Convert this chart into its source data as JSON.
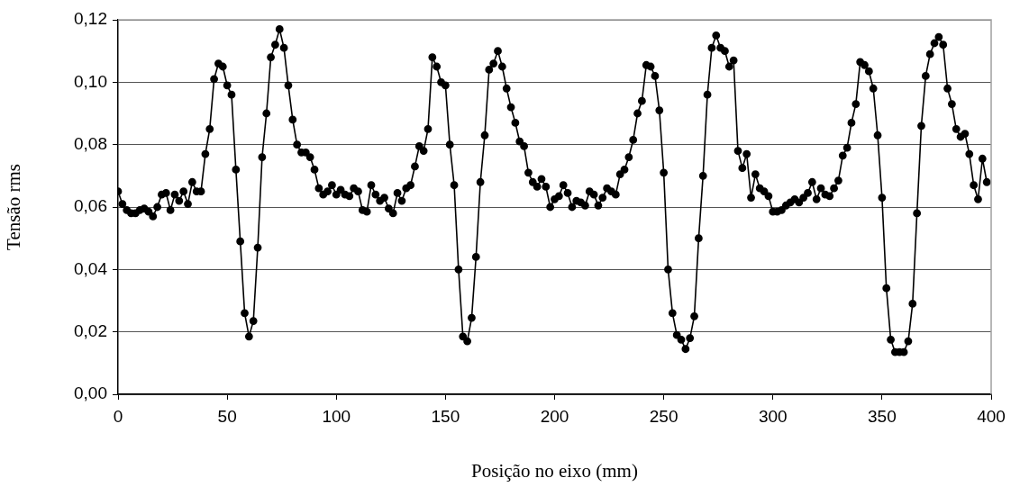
{
  "chart_data": {
    "type": "line",
    "xlabel": "Posição no eixo (mm)",
    "ylabel": "Tensão rms",
    "color": "#000000",
    "marker": "circle",
    "line_style": "solid",
    "grid": "y",
    "legend": false,
    "x": [
      0,
      2,
      4,
      6,
      8,
      10,
      12,
      14,
      16,
      18,
      20,
      22,
      24,
      26,
      28,
      30,
      32,
      34,
      36,
      38,
      40,
      42,
      44,
      46,
      48,
      50,
      52,
      54,
      56,
      58,
      60,
      62,
      64,
      66,
      68,
      70,
      72,
      74,
      76,
      78,
      80,
      82,
      84,
      86,
      88,
      90,
      92,
      94,
      96,
      98,
      100,
      102,
      104,
      106,
      108,
      110,
      112,
      114,
      116,
      118,
      120,
      122,
      124,
      126,
      128,
      130,
      132,
      134,
      136,
      138,
      140,
      142,
      144,
      146,
      148,
      150,
      152,
      154,
      156,
      158,
      160,
      162,
      164,
      166,
      168,
      170,
      172,
      174,
      176,
      178,
      180,
      182,
      184,
      186,
      188,
      190,
      192,
      194,
      196,
      198,
      200,
      202,
      204,
      206,
      208,
      210,
      212,
      214,
      216,
      218,
      220,
      222,
      224,
      226,
      228,
      230,
      232,
      234,
      236,
      238,
      240,
      242,
      244,
      246,
      248,
      250,
      252,
      254,
      256,
      258,
      260,
      262,
      264,
      266,
      268,
      270,
      272,
      274,
      276,
      278,
      280,
      282,
      284,
      286,
      288,
      290,
      292,
      294,
      296,
      298,
      300,
      302,
      304,
      306,
      308,
      310,
      312,
      314,
      316,
      318,
      320,
      322,
      324,
      326,
      328,
      330,
      332,
      334,
      336,
      338,
      340,
      342,
      344,
      346,
      348,
      350,
      352,
      354,
      356,
      358,
      360,
      362,
      364,
      366,
      368,
      370,
      372,
      374,
      376,
      378,
      380,
      382,
      384,
      386,
      388,
      390,
      392,
      394,
      396,
      398
    ],
    "values": [
      0.065,
      0.061,
      0.059,
      0.058,
      0.058,
      0.059,
      0.0595,
      0.0585,
      0.057,
      0.06,
      0.064,
      0.0645,
      0.059,
      0.064,
      0.062,
      0.065,
      0.061,
      0.068,
      0.065,
      0.065,
      0.077,
      0.085,
      0.101,
      0.106,
      0.105,
      0.099,
      0.096,
      0.072,
      0.049,
      0.026,
      0.0185,
      0.0235,
      0.047,
      0.076,
      0.09,
      0.108,
      0.112,
      0.117,
      0.111,
      0.099,
      0.088,
      0.08,
      0.0775,
      0.0775,
      0.076,
      0.072,
      0.066,
      0.064,
      0.065,
      0.067,
      0.064,
      0.0655,
      0.064,
      0.0635,
      0.066,
      0.065,
      0.059,
      0.0585,
      0.067,
      0.064,
      0.062,
      0.063,
      0.0595,
      0.058,
      0.0645,
      0.062,
      0.066,
      0.067,
      0.073,
      0.0795,
      0.078,
      0.085,
      0.108,
      0.105,
      0.1,
      0.099,
      0.08,
      0.067,
      0.04,
      0.0185,
      0.017,
      0.0245,
      0.044,
      0.068,
      0.083,
      0.104,
      0.106,
      0.11,
      0.105,
      0.098,
      0.092,
      0.087,
      0.081,
      0.0795,
      0.071,
      0.068,
      0.0665,
      0.069,
      0.0665,
      0.06,
      0.0625,
      0.0635,
      0.067,
      0.0645,
      0.06,
      0.062,
      0.0615,
      0.0605,
      0.065,
      0.064,
      0.0605,
      0.063,
      0.066,
      0.065,
      0.064,
      0.0705,
      0.072,
      0.076,
      0.0815,
      0.09,
      0.094,
      0.1055,
      0.105,
      0.102,
      0.091,
      0.071,
      0.04,
      0.026,
      0.019,
      0.0175,
      0.0145,
      0.018,
      0.025,
      0.05,
      0.07,
      0.096,
      0.111,
      0.115,
      0.111,
      0.11,
      0.105,
      0.107,
      0.078,
      0.0725,
      0.077,
      0.063,
      0.0705,
      0.066,
      0.065,
      0.0635,
      0.0585,
      0.0585,
      0.059,
      0.0605,
      0.0615,
      0.0625,
      0.0615,
      0.063,
      0.0645,
      0.068,
      0.0625,
      0.066,
      0.064,
      0.0635,
      0.066,
      0.0685,
      0.0765,
      0.079,
      0.087,
      0.093,
      0.1065,
      0.1055,
      0.1035,
      0.098,
      0.083,
      0.063,
      0.034,
      0.0175,
      0.0135,
      0.0135,
      0.0135,
      0.017,
      0.029,
      0.058,
      0.086,
      0.102,
      0.109,
      0.1125,
      0.1145,
      0.112,
      0.098,
      0.093,
      0.085,
      0.0825,
      0.0835,
      0.077,
      0.067,
      0.0625,
      0.0755,
      0.068
    ],
    "xlim": [
      0,
      400
    ],
    "xticks": [
      0,
      50,
      100,
      150,
      200,
      250,
      300,
      350,
      400
    ],
    "ylim": [
      0,
      0.12
    ],
    "yticks": [
      {
        "value": 0,
        "label": "0,00"
      },
      {
        "value": 0.02,
        "label": "0,02"
      },
      {
        "value": 0.04,
        "label": "0,04"
      },
      {
        "value": 0.06,
        "label": "0,06"
      },
      {
        "value": 0.08,
        "label": "0,08"
      },
      {
        "value": 0.1,
        "label": "0,10"
      },
      {
        "value": 0.12,
        "label": "0,12"
      }
    ]
  }
}
